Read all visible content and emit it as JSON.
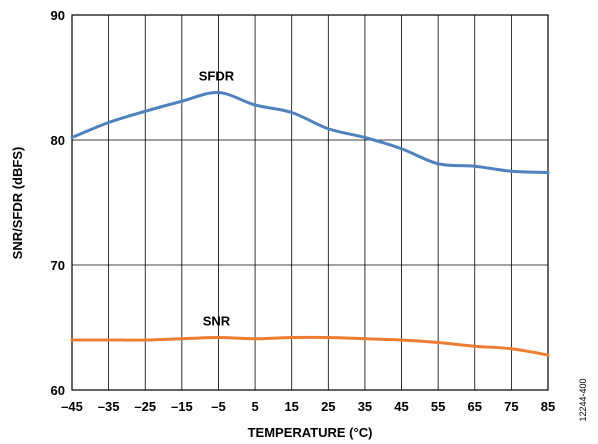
{
  "chart_data": {
    "type": "line",
    "xlabel": "TEMPERATURE (°C)",
    "ylabel": "SNR/SFDR (dBFS)",
    "xlim": [
      -45,
      85
    ],
    "ylim": [
      60,
      90
    ],
    "x_ticks": [
      "–45",
      "–35",
      "–25",
      "–15",
      "–5",
      "5",
      "15",
      "25",
      "35",
      "45",
      "55",
      "65",
      "75",
      "85"
    ],
    "x_tick_values": [
      -45,
      -35,
      -25,
      -15,
      -5,
      5,
      15,
      25,
      35,
      45,
      55,
      65,
      75,
      85
    ],
    "y_ticks": [
      "60",
      "70",
      "80",
      "90"
    ],
    "y_tick_values": [
      60,
      70,
      80,
      90
    ],
    "grid": true,
    "series": [
      {
        "name": "SFDR",
        "color": "#4f81bd",
        "x": [
          -45,
          -35,
          -25,
          -15,
          -5,
          5,
          15,
          25,
          35,
          45,
          55,
          65,
          75,
          85
        ],
        "values": [
          80.2,
          81.4,
          82.3,
          83.1,
          83.8,
          82.8,
          82.2,
          80.9,
          80.2,
          79.3,
          78.1,
          77.9,
          77.5,
          77.4
        ]
      },
      {
        "name": "SNR",
        "color": "#ed7d31",
        "x": [
          -45,
          -35,
          -25,
          -15,
          -5,
          5,
          15,
          25,
          35,
          45,
          55,
          65,
          75,
          85
        ],
        "values": [
          64.0,
          64.0,
          64.0,
          64.1,
          64.2,
          64.1,
          64.2,
          64.2,
          64.1,
          64.0,
          63.8,
          63.5,
          63.3,
          62.8
        ]
      }
    ],
    "figure_id": "12244-400"
  }
}
